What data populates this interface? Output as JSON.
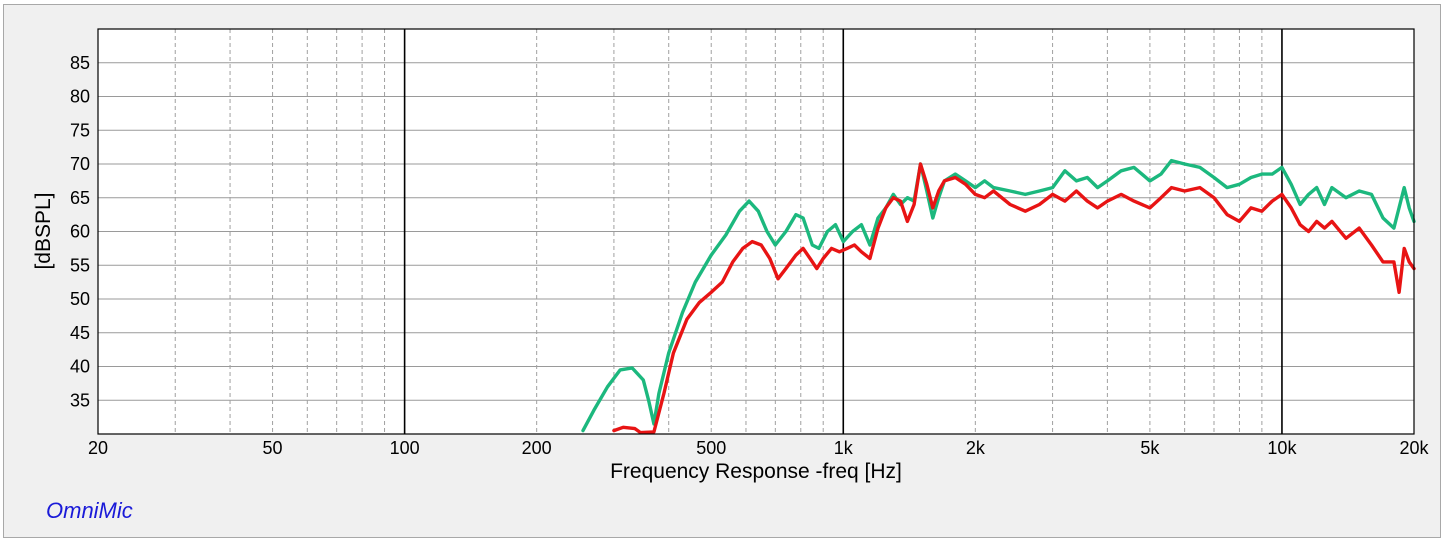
{
  "brand_label": "OmniMic",
  "chart_data": {
    "type": "line",
    "title": "",
    "xlabel": "Frequency Response -freq [Hz]",
    "ylabel": "[dBSPL]",
    "x_scale": "log",
    "xlim": [
      20,
      20000
    ],
    "ylim": [
      30,
      90
    ],
    "x_ticks": [
      {
        "value": 20,
        "label": "20"
      },
      {
        "value": 50,
        "label": "50"
      },
      {
        "value": 100,
        "label": "100"
      },
      {
        "value": 200,
        "label": "200"
      },
      {
        "value": 500,
        "label": "500"
      },
      {
        "value": 1000,
        "label": "1k"
      },
      {
        "value": 2000,
        "label": "2k"
      },
      {
        "value": 5000,
        "label": "5k"
      },
      {
        "value": 10000,
        "label": "10k"
      },
      {
        "value": 20000,
        "label": "20k"
      }
    ],
    "y_ticks": [
      35,
      40,
      45,
      50,
      55,
      60,
      65,
      70,
      75,
      80,
      85
    ],
    "grid": true,
    "series": [
      {
        "color": "#1cb87e",
        "points": [
          [
            255,
            30.5
          ],
          [
            270,
            33.5
          ],
          [
            290,
            37
          ],
          [
            310,
            39.5
          ],
          [
            330,
            39.8
          ],
          [
            350,
            38
          ],
          [
            360,
            35
          ],
          [
            370,
            31.5
          ],
          [
            380,
            36
          ],
          [
            400,
            42
          ],
          [
            430,
            48
          ],
          [
            460,
            52.5
          ],
          [
            500,
            56.5
          ],
          [
            540,
            59.5
          ],
          [
            580,
            63
          ],
          [
            610,
            64.5
          ],
          [
            640,
            63
          ],
          [
            670,
            60
          ],
          [
            700,
            58
          ],
          [
            740,
            60
          ],
          [
            780,
            62.5
          ],
          [
            810,
            62
          ],
          [
            850,
            58
          ],
          [
            880,
            57.5
          ],
          [
            920,
            60
          ],
          [
            960,
            61
          ],
          [
            1000,
            58.5
          ],
          [
            1050,
            60
          ],
          [
            1100,
            61
          ],
          [
            1150,
            58
          ],
          [
            1200,
            62
          ],
          [
            1250,
            63.5
          ],
          [
            1300,
            65.5
          ],
          [
            1350,
            64
          ],
          [
            1400,
            65
          ],
          [
            1450,
            64.5
          ],
          [
            1500,
            70
          ],
          [
            1550,
            66
          ],
          [
            1600,
            62
          ],
          [
            1650,
            65
          ],
          [
            1700,
            67.5
          ],
          [
            1800,
            68.5
          ],
          [
            1900,
            67.5
          ],
          [
            2000,
            66.5
          ],
          [
            2100,
            67.5
          ],
          [
            2200,
            66.5
          ],
          [
            2400,
            66
          ],
          [
            2600,
            65.5
          ],
          [
            2800,
            66
          ],
          [
            3000,
            66.5
          ],
          [
            3200,
            69
          ],
          [
            3400,
            67.5
          ],
          [
            3600,
            68
          ],
          [
            3800,
            66.5
          ],
          [
            4000,
            67.5
          ],
          [
            4300,
            69
          ],
          [
            4600,
            69.5
          ],
          [
            5000,
            67.5
          ],
          [
            5300,
            68.5
          ],
          [
            5600,
            70.5
          ],
          [
            6000,
            70
          ],
          [
            6500,
            69.5
          ],
          [
            7000,
            68
          ],
          [
            7500,
            66.5
          ],
          [
            8000,
            67
          ],
          [
            8500,
            68
          ],
          [
            9000,
            68.5
          ],
          [
            9500,
            68.5
          ],
          [
            10000,
            69.5
          ],
          [
            10500,
            67
          ],
          [
            11000,
            64
          ],
          [
            11500,
            65.5
          ],
          [
            12000,
            66.5
          ],
          [
            12500,
            64
          ],
          [
            13000,
            66.5
          ],
          [
            14000,
            65
          ],
          [
            15000,
            66
          ],
          [
            16000,
            65.5
          ],
          [
            17000,
            62
          ],
          [
            18000,
            60.5
          ],
          [
            19000,
            66.5
          ],
          [
            19500,
            63.5
          ],
          [
            20000,
            61.5
          ]
        ]
      },
      {
        "color": "#e81414",
        "points": [
          [
            300,
            30.5
          ],
          [
            315,
            31
          ],
          [
            335,
            30.8
          ],
          [
            345,
            30.2
          ],
          [
            370,
            30.3
          ],
          [
            390,
            36
          ],
          [
            410,
            42
          ],
          [
            440,
            47
          ],
          [
            470,
            49.5
          ],
          [
            500,
            51
          ],
          [
            530,
            52.5
          ],
          [
            560,
            55.5
          ],
          [
            590,
            57.5
          ],
          [
            620,
            58.5
          ],
          [
            650,
            58
          ],
          [
            680,
            56
          ],
          [
            710,
            53
          ],
          [
            740,
            54.5
          ],
          [
            780,
            56.5
          ],
          [
            810,
            57.5
          ],
          [
            840,
            56
          ],
          [
            870,
            54.5
          ],
          [
            900,
            56
          ],
          [
            940,
            57.5
          ],
          [
            980,
            57
          ],
          [
            1020,
            57.5
          ],
          [
            1060,
            58
          ],
          [
            1100,
            57
          ],
          [
            1150,
            56
          ],
          [
            1200,
            60.5
          ],
          [
            1250,
            63.5
          ],
          [
            1300,
            65
          ],
          [
            1350,
            64.5
          ],
          [
            1400,
            61.5
          ],
          [
            1450,
            64
          ],
          [
            1500,
            70
          ],
          [
            1550,
            67
          ],
          [
            1600,
            63.5
          ],
          [
            1650,
            66
          ],
          [
            1700,
            67.5
          ],
          [
            1800,
            68
          ],
          [
            1900,
            67
          ],
          [
            2000,
            65.5
          ],
          [
            2100,
            65
          ],
          [
            2200,
            66
          ],
          [
            2400,
            64
          ],
          [
            2600,
            63
          ],
          [
            2800,
            64
          ],
          [
            3000,
            65.5
          ],
          [
            3200,
            64.5
          ],
          [
            3400,
            66
          ],
          [
            3600,
            64.5
          ],
          [
            3800,
            63.5
          ],
          [
            4000,
            64.5
          ],
          [
            4300,
            65.5
          ],
          [
            4600,
            64.5
          ],
          [
            5000,
            63.5
          ],
          [
            5300,
            65
          ],
          [
            5600,
            66.5
          ],
          [
            6000,
            66
          ],
          [
            6500,
            66.5
          ],
          [
            7000,
            65
          ],
          [
            7500,
            62.5
          ],
          [
            8000,
            61.5
          ],
          [
            8500,
            63.5
          ],
          [
            9000,
            63
          ],
          [
            9500,
            64.5
          ],
          [
            10000,
            65.5
          ],
          [
            10500,
            63.5
          ],
          [
            11000,
            61
          ],
          [
            11500,
            60
          ],
          [
            12000,
            61.5
          ],
          [
            12500,
            60.5
          ],
          [
            13000,
            61.5
          ],
          [
            14000,
            59
          ],
          [
            15000,
            60.5
          ],
          [
            16000,
            58
          ],
          [
            17000,
            55.5
          ],
          [
            18000,
            55.5
          ],
          [
            18500,
            51
          ],
          [
            19000,
            57.5
          ],
          [
            19500,
            55.5
          ],
          [
            20000,
            54.5
          ]
        ]
      }
    ]
  }
}
